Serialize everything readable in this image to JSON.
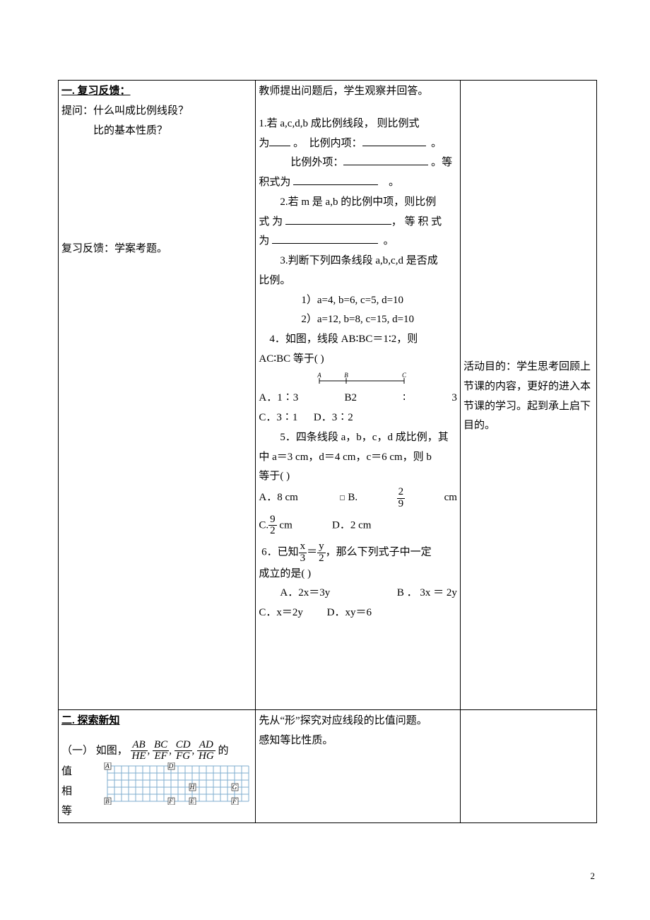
{
  "page_number": "2",
  "col1": {
    "s1_title": "一. 复习反馈：",
    "s1_line1a": "提问：什么叫成比例线段？",
    "s1_line1b": "比的基本性质？",
    "s1_line2": "复习反馈：学案考题。",
    "s2_title": "二. 探索新知",
    "s2_prefix": "（一） 如图，",
    "s2_frac1_n": "AB",
    "s2_frac1_d": "HE",
    "s2_frac2_n": "BC",
    "s2_frac2_d": "EF",
    "s2_frac3_n": "CD",
    "s2_frac3_d": "FG",
    "s2_frac4_n": "AD",
    "s2_frac4_d": "HG",
    "s2_suffix": "的",
    "s2_cont1": "值",
    "s2_cont2": "相",
    "s2_cont3": "等",
    "grid_labels": {
      "A": "A",
      "D": "D",
      "H": "H",
      "G": "G",
      "B": "B",
      "F1": "F",
      "E": "E",
      "F2": "F"
    }
  },
  "col2": {
    "intro": "教师提出问题后，学生观察并回答。",
    "q1a": "1.若 a,c,d,b 成比例线段， 则比例式为",
    "q1b": "。  比例内项：",
    "q1c": "。",
    "q1d": "比例外项：",
    "q1e": "。等",
    "q1f": "积式为",
    "q1g": "。",
    "q2a": "2.若 m 是 a,b 的比例中项，则比例",
    "q2b": "式 为",
    "q2c": "， 等 积 式",
    "q2d": "为",
    "q2e": "。",
    "q3a": "3.判断下列四条线段 a,b,c,d 是否成",
    "q3b": "比例。",
    "q3c": "1）a=4,    b=6, c=5, d=10",
    "q3d": "2）a=12, b=8, c=15, d=10",
    "q4a": "4．如图，线段 AB∶BC＝1∶2，则",
    "q4b": "AC∶BC 等于(      )",
    "q4_diagram": {
      "A": "A",
      "B": "B",
      "C": "C"
    },
    "q4_optA": "A．1∶3",
    "q4_optB1": "B2",
    "q4_optB2": "∶",
    "q4_optB3": "3",
    "q4_optC": "C．3∶1",
    "q4_optD": "D．3∶2",
    "q5a": "5．四条线段 a，b，c，d 成比例，其",
    "q5b": "中 a＝3 cm，d＝4 cm，c＝6 cm，则 b",
    "q5c": "等于(      )",
    "q5_optA": "A．8 cm",
    "q5_optB_pre": "B.",
    "q5_optB_num": "2",
    "q5_optB_den": "9",
    "q5_optB_suf": "cm",
    "q5_optC_pre": "C.",
    "q5_optC_num": "9",
    "q5_optC_den": "2",
    "q5_optC_suf": "cm",
    "q5_optD": "D．2 cm",
    "q6a_pre": "6．已知",
    "q6a_f1n": "x",
    "q6a_f1d": "3",
    "q6a_mid": "＝",
    "q6a_f2n": "y",
    "q6a_f2d": "2",
    "q6a_suf": "，那么下列式子中一定",
    "q6b": "成立的是(      )",
    "q6_optA": "A．2x＝3y",
    "q6_optB": "B   ．   3x    ＝    2y",
    "q6_optC": "C．x＝2y",
    "q6_optD": "D．xy＝6",
    "s2a": "先从“形”探究对应线段的比值问题。",
    "s2b": "感知等比性质。"
  },
  "col3": {
    "p1": "活动目的：学生思考回顾上节课的内容，更好的进入本节课的学习。起到承上启下目的。"
  },
  "grid_style": {
    "cols": 20,
    "rows": 5,
    "cell": 10,
    "stroke": "#7faecf",
    "fill": "#ffffff",
    "label_font": 9
  },
  "line_diag_style": {
    "width": 130,
    "height": 18,
    "stroke": "#000000",
    "tick_h": 6,
    "label_font": 9
  }
}
